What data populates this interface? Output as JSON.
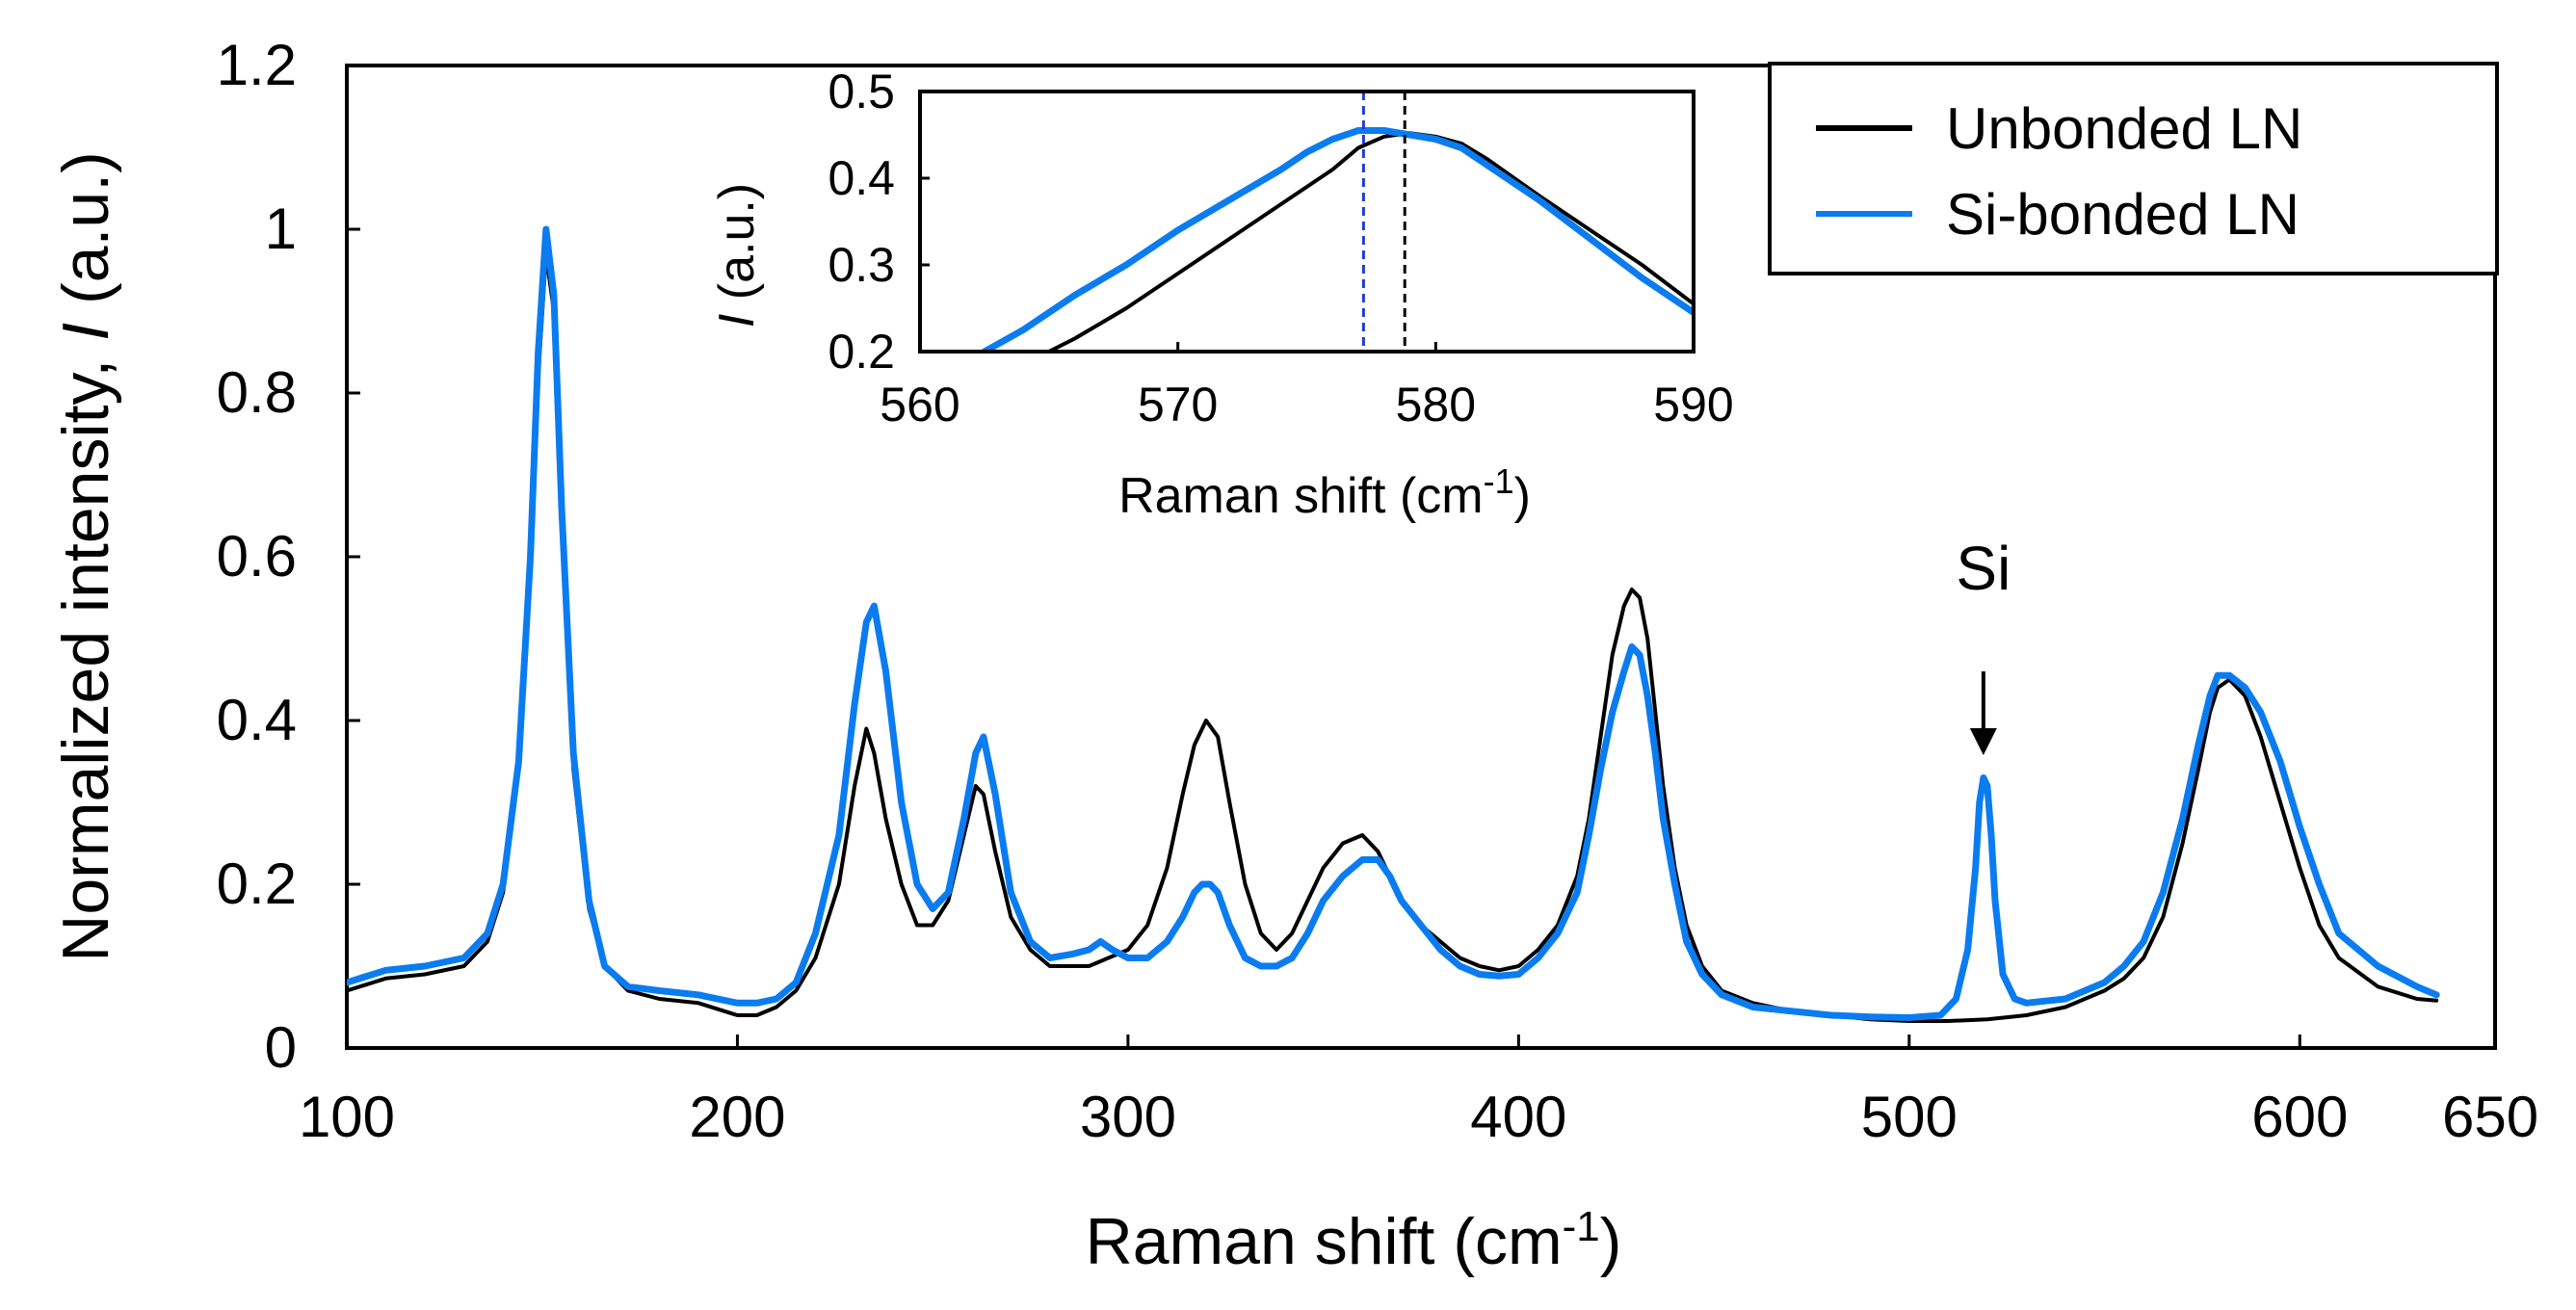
{
  "chart_data": [
    {
      "type": "line",
      "title": "",
      "xlabel": "Raman shift (cm",
      "xlabel_sup": "-1",
      "xlabel_close": ")",
      "ylabel": "Normalized intensity, ",
      "ylabel_italic": "I",
      "ylabel_unit": " (a.u.)",
      "xlim": [
        100,
        650
      ],
      "ylim": [
        0,
        1.2
      ],
      "xticks": [
        100,
        200,
        300,
        400,
        500,
        600,
        650
      ],
      "xtick_labels": [
        "100",
        "200",
        "300",
        "400",
        "500",
        "600",
        "650"
      ],
      "yticks": [
        0,
        0.2,
        0.4,
        0.6,
        0.8,
        1.0,
        1.2
      ],
      "ytick_labels": [
        "0",
        "0.2",
        "0.4",
        "0.6",
        "0.8",
        "1",
        "1.2"
      ],
      "grid": false,
      "legend_position": "top-right",
      "series": [
        {
          "name": "Unbonded LN",
          "color": "#000000",
          "x": [
            100,
            110,
            120,
            130,
            136,
            140,
            144,
            147,
            149,
            151,
            153,
            155,
            158,
            162,
            166,
            172,
            180,
            190,
            200,
            205,
            210,
            215,
            220,
            226,
            230,
            233,
            235,
            238,
            242,
            246,
            250,
            254,
            258,
            261,
            263,
            266,
            270,
            275,
            280,
            290,
            300,
            305,
            310,
            314,
            317,
            320,
            323,
            326,
            330,
            334,
            338,
            342,
            346,
            350,
            355,
            360,
            364,
            367,
            370,
            375,
            380,
            385,
            390,
            395,
            400,
            405,
            410,
            415,
            418,
            421,
            424,
            427,
            429,
            431,
            433,
            435,
            437,
            440,
            443,
            447,
            452,
            460,
            470,
            480,
            490,
            500,
            510,
            520,
            530,
            540,
            550,
            555,
            560,
            565,
            570,
            574,
            577,
            579,
            582,
            586,
            590,
            595,
            600,
            605,
            610,
            620,
            630,
            635
          ],
          "y": [
            0.07,
            0.085,
            0.09,
            0.1,
            0.13,
            0.19,
            0.34,
            0.58,
            0.82,
            0.97,
            0.9,
            0.64,
            0.34,
            0.17,
            0.1,
            0.07,
            0.06,
            0.055,
            0.04,
            0.04,
            0.05,
            0.07,
            0.11,
            0.2,
            0.32,
            0.39,
            0.36,
            0.28,
            0.2,
            0.15,
            0.15,
            0.18,
            0.26,
            0.32,
            0.31,
            0.24,
            0.16,
            0.12,
            0.1,
            0.1,
            0.12,
            0.15,
            0.22,
            0.31,
            0.37,
            0.4,
            0.38,
            0.3,
            0.2,
            0.14,
            0.12,
            0.14,
            0.18,
            0.22,
            0.25,
            0.26,
            0.24,
            0.21,
            0.18,
            0.15,
            0.13,
            0.11,
            0.1,
            0.095,
            0.1,
            0.12,
            0.15,
            0.21,
            0.28,
            0.38,
            0.48,
            0.54,
            0.56,
            0.55,
            0.5,
            0.41,
            0.32,
            0.22,
            0.15,
            0.1,
            0.07,
            0.055,
            0.045,
            0.04,
            0.035,
            0.033,
            0.033,
            0.035,
            0.04,
            0.05,
            0.07,
            0.085,
            0.11,
            0.16,
            0.25,
            0.34,
            0.41,
            0.44,
            0.45,
            0.43,
            0.38,
            0.3,
            0.22,
            0.15,
            0.11,
            0.075,
            0.06,
            0.058
          ]
        },
        {
          "name": "Si-bonded LN",
          "color": "#0a7cf0",
          "x": [
            100,
            110,
            120,
            130,
            136,
            140,
            144,
            147,
            149,
            151,
            153,
            155,
            158,
            162,
            166,
            172,
            180,
            190,
            200,
            205,
            210,
            215,
            220,
            226,
            230,
            233,
            235,
            238,
            242,
            246,
            250,
            254,
            258,
            261,
            263,
            266,
            270,
            275,
            280,
            286,
            290,
            293,
            296,
            300,
            305,
            310,
            314,
            317,
            319,
            321,
            323,
            326,
            330,
            334,
            338,
            342,
            346,
            350,
            355,
            360,
            364,
            367,
            370,
            375,
            380,
            385,
            390,
            395,
            400,
            405,
            410,
            415,
            418,
            421,
            424,
            427,
            429,
            431,
            433,
            435,
            437,
            440,
            443,
            447,
            452,
            460,
            470,
            480,
            490,
            500,
            508,
            512,
            515,
            517,
            518,
            519,
            520,
            521,
            522,
            524,
            527,
            530,
            540,
            550,
            555,
            560,
            565,
            570,
            574,
            577,
            579,
            582,
            586,
            590,
            595,
            600,
            605,
            610,
            620,
            630,
            635
          ],
          "y": [
            0.08,
            0.095,
            0.1,
            0.11,
            0.14,
            0.2,
            0.35,
            0.6,
            0.85,
            1.0,
            0.92,
            0.66,
            0.36,
            0.18,
            0.1,
            0.075,
            0.07,
            0.065,
            0.055,
            0.055,
            0.06,
            0.08,
            0.14,
            0.26,
            0.42,
            0.52,
            0.54,
            0.46,
            0.3,
            0.2,
            0.17,
            0.19,
            0.28,
            0.36,
            0.38,
            0.31,
            0.19,
            0.13,
            0.11,
            0.115,
            0.12,
            0.13,
            0.12,
            0.11,
            0.11,
            0.13,
            0.16,
            0.19,
            0.2,
            0.2,
            0.19,
            0.15,
            0.11,
            0.1,
            0.1,
            0.11,
            0.14,
            0.18,
            0.21,
            0.23,
            0.23,
            0.21,
            0.18,
            0.15,
            0.12,
            0.1,
            0.09,
            0.088,
            0.09,
            0.11,
            0.14,
            0.19,
            0.26,
            0.34,
            0.41,
            0.46,
            0.49,
            0.48,
            0.43,
            0.36,
            0.28,
            0.2,
            0.13,
            0.09,
            0.065,
            0.05,
            0.045,
            0.04,
            0.038,
            0.037,
            0.04,
            0.06,
            0.12,
            0.22,
            0.3,
            0.33,
            0.32,
            0.26,
            0.18,
            0.09,
            0.06,
            0.055,
            0.06,
            0.08,
            0.1,
            0.13,
            0.19,
            0.28,
            0.37,
            0.43,
            0.455,
            0.455,
            0.44,
            0.41,
            0.35,
            0.27,
            0.2,
            0.14,
            0.1,
            0.075,
            0.065
          ]
        }
      ],
      "annotations": [
        {
          "text": "Si",
          "x": 519,
          "y_text": 0.56,
          "arrow_from": 0.46,
          "arrow_to": 0.36
        }
      ]
    },
    {
      "type": "line",
      "role": "inset",
      "xlabel": "Raman shift (cm",
      "xlabel_sup": "-1",
      "xlabel_close": ")",
      "ylabel_italic": "I",
      "ylabel_unit": " (a.u.)",
      "xlim": [
        560,
        590
      ],
      "ylim": [
        0.2,
        0.5
      ],
      "xticks": [
        560,
        570,
        580,
        590
      ],
      "xtick_labels": [
        "560",
        "570",
        "580",
        "590"
      ],
      "yticks": [
        0.2,
        0.3,
        0.4,
        0.5
      ],
      "ytick_labels": [
        "0.2",
        "0.3",
        "0.4",
        "0.5"
      ],
      "series": [
        {
          "name": "Unbonded LN",
          "color": "#000000",
          "x": [
            565,
            566,
            568,
            570,
            572,
            574,
            575,
            576,
            577,
            578,
            579,
            580,
            581,
            582,
            584,
            586,
            588,
            590
          ],
          "y": [
            0.2,
            0.215,
            0.25,
            0.29,
            0.33,
            0.37,
            0.39,
            0.41,
            0.435,
            0.448,
            0.452,
            0.448,
            0.44,
            0.422,
            0.38,
            0.34,
            0.3,
            0.255
          ],
          "peak_marker": 578.8
        },
        {
          "name": "Si-bonded LN",
          "color": "#0a7cf0",
          "x": [
            562.5,
            564,
            566,
            568,
            570,
            572,
            574,
            575,
            576,
            577,
            578,
            579,
            580,
            581,
            582,
            584,
            586,
            588,
            590
          ],
          "y": [
            0.2,
            0.225,
            0.265,
            0.3,
            0.34,
            0.375,
            0.41,
            0.43,
            0.445,
            0.455,
            0.455,
            0.45,
            0.445,
            0.435,
            0.415,
            0.375,
            0.33,
            0.285,
            0.245
          ],
          "peak_marker": 577.2
        }
      ]
    }
  ]
}
